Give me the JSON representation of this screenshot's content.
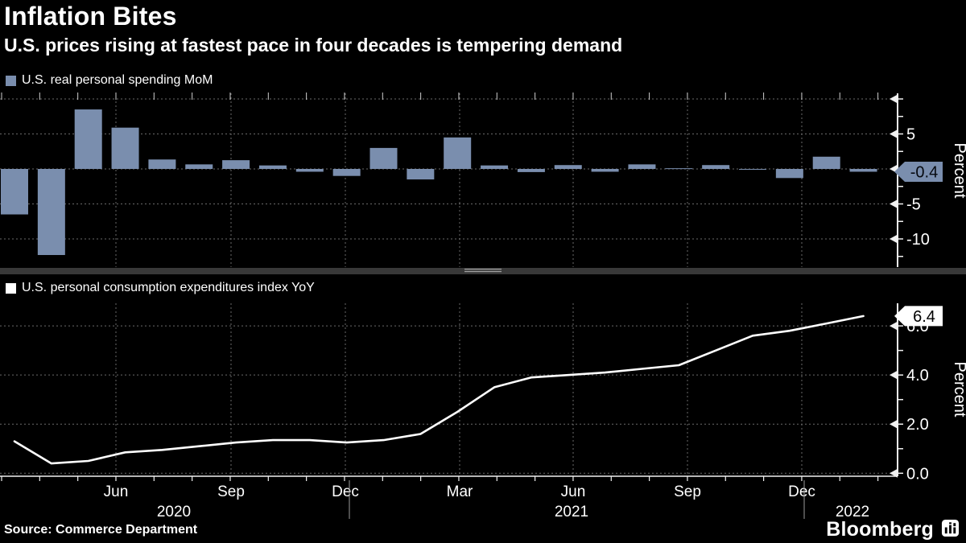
{
  "header": {
    "title": "Inflation Bites",
    "subtitle": "U.S. prices rising at fastest pace in four decades is tempering demand"
  },
  "footer": {
    "source": "Source: Commerce Department",
    "brand": "Bloomberg",
    "brand_icon": "bloomberg-chart-icon"
  },
  "colors": {
    "background": "#000000",
    "bar": "#7a8eae",
    "line": "#ffffff",
    "grid": "#6a6a6a",
    "axis": "#f0f0f0",
    "badge_top_bg": "#7a8eae",
    "badge_top_text": "#06090f",
    "badge_bottom_bg": "#ffffff",
    "badge_bottom_text": "#000000",
    "divider": "#383838"
  },
  "xaxis": {
    "tick_labels": [
      {
        "month_index": 3,
        "label": "Jun"
      },
      {
        "month_index": 6,
        "label": "Sep"
      },
      {
        "month_index": 9,
        "label": "Dec"
      },
      {
        "month_index": 12,
        "label": "Mar"
      },
      {
        "month_index": 15,
        "label": "Jun"
      },
      {
        "month_index": 18,
        "label": "Sep"
      },
      {
        "month_index": 21,
        "label": "Dec"
      }
    ],
    "year_labels": [
      "2020",
      "2021",
      "2022"
    ]
  },
  "chart_data": [
    {
      "type": "bar",
      "title": "U.S. real personal spending MoM",
      "legend_label": "U.S. real personal spending MoM",
      "bar_color": "#7a8eae",
      "ylabel": "Percent",
      "ylim": [
        -14,
        11
      ],
      "yticks": [
        10,
        5,
        0,
        -5,
        -10
      ],
      "ytick_labels": [
        "",
        "5",
        "",
        "-5",
        "-10"
      ],
      "minor_yticks": [
        7.5,
        2.5,
        -2.5,
        -7.5,
        -12.5
      ],
      "grid": "dashed",
      "last_value_badge": "-0.4",
      "categories": [
        "Mar 2020",
        "Apr 2020",
        "May 2020",
        "Jun 2020",
        "Jul 2020",
        "Aug 2020",
        "Sep 2020",
        "Oct 2020",
        "Nov 2020",
        "Dec 2020",
        "Jan 2021",
        "Feb 2021",
        "Mar 2021",
        "Apr 2021",
        "May 2021",
        "Jun 2021",
        "Jul 2021",
        "Aug 2021",
        "Sep 2021",
        "Oct 2021",
        "Nov 2021",
        "Dec 2021",
        "Jan 2022",
        "Feb 2022"
      ],
      "values": [
        -6.5,
        -12.3,
        8.5,
        5.9,
        1.35,
        0.65,
        1.25,
        0.5,
        -0.4,
        -1.0,
        3.0,
        -1.5,
        4.5,
        0.5,
        -0.45,
        0.55,
        -0.4,
        0.65,
        0.1,
        0.55,
        -0.1,
        -1.3,
        1.75,
        -0.4
      ]
    },
    {
      "type": "line",
      "title": "U.S. personal consumption expenditures index YoY",
      "legend_label": "U.S. personal consumption expenditures index YoY",
      "line_color": "#ffffff",
      "ylabel": "Percent",
      "ylim": [
        -0.2,
        7
      ],
      "yticks": [
        6,
        4,
        2,
        0
      ],
      "ytick_labels": [
        "6.0",
        "4.0",
        "2.0",
        "0.0"
      ],
      "minor_yticks": [
        5,
        3,
        1
      ],
      "grid": "dashed",
      "last_value_badge": "6.4",
      "categories": [
        "Mar 2020",
        "Apr 2020",
        "May 2020",
        "Jun 2020",
        "Jul 2020",
        "Aug 2020",
        "Sep 2020",
        "Oct 2020",
        "Nov 2020",
        "Dec 2020",
        "Jan 2021",
        "Feb 2021",
        "Mar 2021",
        "Apr 2021",
        "May 2021",
        "Jun 2021",
        "Jul 2021",
        "Aug 2021",
        "Sep 2021",
        "Oct 2021",
        "Nov 2021",
        "Dec 2021",
        "Jan 2022",
        "Feb 2022"
      ],
      "values": [
        1.3,
        0.4,
        0.5,
        0.85,
        0.95,
        1.1,
        1.25,
        1.35,
        1.35,
        1.25,
        1.35,
        1.6,
        2.5,
        3.5,
        3.9,
        4.0,
        4.1,
        4.25,
        4.4,
        5.0,
        5.6,
        5.8,
        6.1,
        6.4
      ]
    }
  ]
}
